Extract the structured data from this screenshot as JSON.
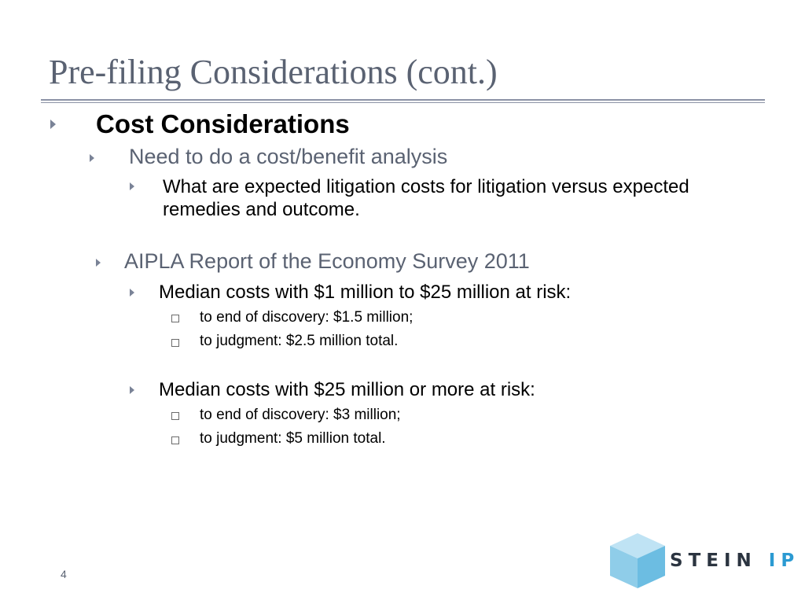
{
  "slide": {
    "title": "Pre-filing Considerations (cont.)",
    "page_number": "4"
  },
  "content": {
    "heading": "Cost Considerations",
    "point1": {
      "text": "Need to do a cost/benefit analysis",
      "sub_line1": "What are expected litigation costs for litigation versus expected",
      "sub_line2": "remedies and outcome."
    },
    "point2": {
      "text": "AIPLA Report of the Economy Survey 2011",
      "group1": {
        "text": "Median costs with $1 million to $25 million at risk:",
        "items": [
          "to end of discovery:  $1.5 million;",
          "to  judgment: $2.5 million total."
        ]
      },
      "group2": {
        "text": "Median costs with $25 million or more at risk:",
        "items": [
          "to end of discovery:  $3 million;",
          "to  judgment: $5 million total."
        ]
      }
    }
  },
  "logo": {
    "name_part1": "STEIN",
    "name_part2": "IP",
    "icon": "cube-icon",
    "colors": {
      "cube_light": "#bfe3f4",
      "cube_mid": "#8fcde9",
      "cube_dark": "#6cbde2",
      "ip": "#2b9ad2"
    }
  }
}
